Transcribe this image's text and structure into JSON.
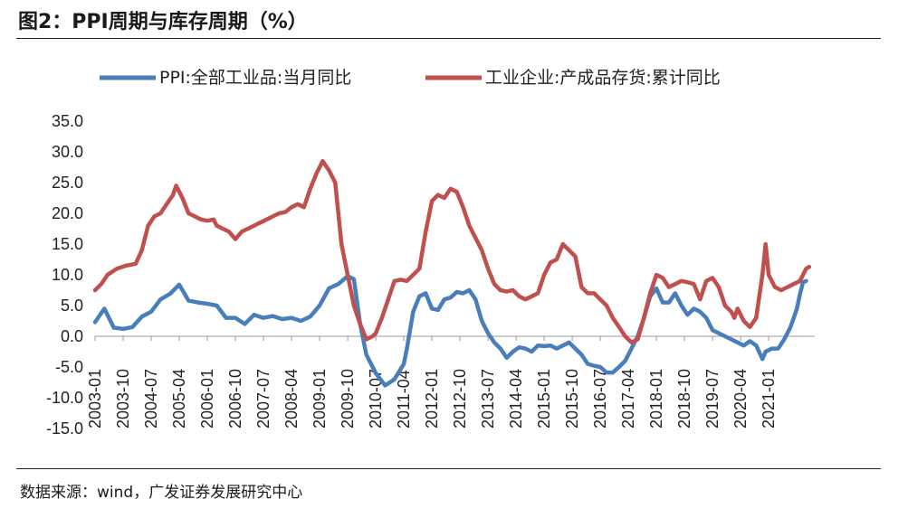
{
  "header": {
    "title": "图2：PPI周期与库存周期（%）"
  },
  "footer": {
    "source": "数据来源：wind，广发证券发展研究中心"
  },
  "chart_data": {
    "type": "line",
    "title": "PPI周期与库存周期（%）",
    "xlabel": "",
    "ylabel": "",
    "ylim": [
      -15,
      35
    ],
    "yticks": [
      "35.0",
      "30.0",
      "25.0",
      "20.0",
      "15.0",
      "10.0",
      "5.0",
      "0.0",
      "-5.0",
      "-10.0",
      "-15.0"
    ],
    "x_tick_labels": [
      "2003-01",
      "2003-10",
      "2004-07",
      "2005-04",
      "2006-01",
      "2006-10",
      "2007-07",
      "2008-04",
      "2009-01",
      "2009-10",
      "2010-07",
      "2011-04",
      "2012-01",
      "2012-10",
      "2013-07",
      "2014-04",
      "2015-01",
      "2015-10",
      "2016-07",
      "2017-04",
      "2018-01",
      "2018-10",
      "2019-07",
      "2020-04",
      "2021-01"
    ],
    "x_start": "2003-01",
    "x_end": "2021-06",
    "legend_position": "top",
    "series": [
      {
        "name": "PPI:全部工业品:当月同比",
        "color": "#4a7ebb",
        "points": [
          [
            0,
            2.3
          ],
          [
            3,
            4.5
          ],
          [
            6,
            1.4
          ],
          [
            9,
            1.2
          ],
          [
            12,
            1.5
          ],
          [
            15,
            3.2
          ],
          [
            18,
            4.0
          ],
          [
            21,
            6.0
          ],
          [
            24,
            6.9
          ],
          [
            27,
            8.4
          ],
          [
            30,
            5.8
          ],
          [
            33,
            5.5
          ],
          [
            36,
            5.3
          ],
          [
            39,
            5.0
          ],
          [
            42,
            3.0
          ],
          [
            45,
            3.0
          ],
          [
            48,
            2.0
          ],
          [
            51,
            3.5
          ],
          [
            54,
            3.0
          ],
          [
            57,
            3.3
          ],
          [
            60,
            2.8
          ],
          [
            63,
            3.0
          ],
          [
            66,
            2.5
          ],
          [
            69,
            3.2
          ],
          [
            72,
            5.0
          ],
          [
            75,
            7.8
          ],
          [
            78,
            8.5
          ],
          [
            81,
            9.8
          ],
          [
            83,
            9.3
          ],
          [
            85,
            2.0
          ],
          [
            87,
            -3.0
          ],
          [
            90,
            -6.0
          ],
          [
            93,
            -8.0
          ],
          [
            96,
            -7.0
          ],
          [
            99,
            -4.5
          ],
          [
            100,
            -2.0
          ],
          [
            102,
            4.0
          ],
          [
            104,
            6.5
          ],
          [
            106,
            7.0
          ],
          [
            108,
            4.5
          ],
          [
            110,
            4.3
          ],
          [
            112,
            6.0
          ],
          [
            114,
            6.3
          ],
          [
            116,
            7.2
          ],
          [
            118,
            7.0
          ],
          [
            120,
            7.5
          ],
          [
            122,
            6.0
          ],
          [
            124,
            2.5
          ],
          [
            126,
            0.5
          ],
          [
            128,
            -1.0
          ],
          [
            130,
            -2.0
          ],
          [
            132,
            -3.5
          ],
          [
            134,
            -2.5
          ],
          [
            136,
            -1.8
          ],
          [
            138,
            -2.0
          ],
          [
            140,
            -2.5
          ],
          [
            142,
            -1.5
          ],
          [
            144,
            -1.6
          ],
          [
            146,
            -1.5
          ],
          [
            148,
            -2.0
          ],
          [
            150,
            -1.5
          ],
          [
            152,
            -1.0
          ],
          [
            154,
            -2.0
          ],
          [
            156,
            -3.0
          ],
          [
            158,
            -4.5
          ],
          [
            160,
            -4.8
          ],
          [
            162,
            -5.0
          ],
          [
            164,
            -5.9
          ],
          [
            166,
            -5.9
          ],
          [
            168,
            -5.0
          ],
          [
            170,
            -4.0
          ],
          [
            172,
            -2.0
          ],
          [
            174,
            0.0
          ],
          [
            176,
            3.0
          ],
          [
            178,
            6.5
          ],
          [
            180,
            7.8
          ],
          [
            182,
            5.5
          ],
          [
            184,
            5.5
          ],
          [
            186,
            7.0
          ],
          [
            188,
            5.0
          ],
          [
            190,
            3.5
          ],
          [
            192,
            4.5
          ],
          [
            194,
            4.0
          ],
          [
            196,
            3.0
          ],
          [
            198,
            1.0
          ],
          [
            200,
            0.5
          ],
          [
            202,
            0.0
          ],
          [
            204,
            -0.5
          ],
          [
            206,
            -1.0
          ],
          [
            208,
            -1.5
          ],
          [
            210,
            -0.8
          ],
          [
            212,
            -1.5
          ],
          [
            214,
            -3.7
          ],
          [
            215,
            -2.5
          ],
          [
            217,
            -2.0
          ],
          [
            219,
            -2.0
          ],
          [
            221,
            -0.5
          ],
          [
            223,
            1.5
          ],
          [
            225,
            4.4
          ],
          [
            226,
            6.8
          ],
          [
            227,
            8.8
          ],
          [
            228,
            9.0
          ]
        ]
      },
      {
        "name": "工业企业:产成品存货:累计同比",
        "color": "#c0504d",
        "points": [
          [
            0,
            7.5
          ],
          [
            2,
            8.5
          ],
          [
            4,
            10.0
          ],
          [
            7,
            11.0
          ],
          [
            10,
            11.5
          ],
          [
            13,
            11.8
          ],
          [
            15,
            14.0
          ],
          [
            17,
            18.0
          ],
          [
            19,
            19.5
          ],
          [
            21,
            20.0
          ],
          [
            23,
            21.5
          ],
          [
            25,
            23.0
          ],
          [
            26,
            24.5
          ],
          [
            28,
            22.5
          ],
          [
            30,
            20.0
          ],
          [
            32,
            19.5
          ],
          [
            34,
            19.0
          ],
          [
            36,
            18.8
          ],
          [
            38,
            19.0
          ],
          [
            39,
            18.0
          ],
          [
            41,
            17.5
          ],
          [
            43,
            17.0
          ],
          [
            45,
            15.8
          ],
          [
            47,
            17.0
          ],
          [
            49,
            17.5
          ],
          [
            51,
            18.0
          ],
          [
            53,
            18.5
          ],
          [
            55,
            19.0
          ],
          [
            57,
            19.5
          ],
          [
            59,
            20.0
          ],
          [
            61,
            20.2
          ],
          [
            63,
            21.0
          ],
          [
            65,
            21.5
          ],
          [
            67,
            21.0
          ],
          [
            69,
            24.0
          ],
          [
            71,
            26.5
          ],
          [
            73,
            28.5
          ],
          [
            75,
            27.0
          ],
          [
            77,
            25.0
          ],
          [
            79,
            15.0
          ],
          [
            81,
            10.0
          ],
          [
            83,
            5.0
          ],
          [
            85,
            2.0
          ],
          [
            87,
            -0.5
          ],
          [
            89,
            0.0
          ],
          [
            90,
            0.5
          ],
          [
            92,
            3.0
          ],
          [
            94,
            6.0
          ],
          [
            96,
            9.0
          ],
          [
            98,
            9.2
          ],
          [
            100,
            9.0
          ],
          [
            102,
            10.0
          ],
          [
            104,
            11.0
          ],
          [
            106,
            17.0
          ],
          [
            108,
            22.0
          ],
          [
            110,
            23.0
          ],
          [
            112,
            22.5
          ],
          [
            114,
            24.0
          ],
          [
            116,
            23.5
          ],
          [
            118,
            21.0
          ],
          [
            120,
            18.0
          ],
          [
            122,
            16.0
          ],
          [
            124,
            14.0
          ],
          [
            126,
            11.0
          ],
          [
            128,
            8.5
          ],
          [
            130,
            7.5
          ],
          [
            132,
            7.3
          ],
          [
            134,
            7.5
          ],
          [
            136,
            6.5
          ],
          [
            138,
            6.0
          ],
          [
            140,
            6.5
          ],
          [
            142,
            7.0
          ],
          [
            144,
            10.0
          ],
          [
            146,
            12.0
          ],
          [
            148,
            12.5
          ],
          [
            150,
            15.0
          ],
          [
            152,
            14.0
          ],
          [
            154,
            13.0
          ],
          [
            156,
            8.0
          ],
          [
            158,
            7.0
          ],
          [
            160,
            7.0
          ],
          [
            162,
            6.0
          ],
          [
            164,
            5.0
          ],
          [
            166,
            3.0
          ],
          [
            168,
            1.5
          ],
          [
            170,
            0.0
          ],
          [
            172,
            -1.0
          ],
          [
            174,
            -0.5
          ],
          [
            176,
            3.0
          ],
          [
            178,
            7.0
          ],
          [
            180,
            10.0
          ],
          [
            182,
            9.5
          ],
          [
            184,
            8.0
          ],
          [
            186,
            8.5
          ],
          [
            188,
            9.0
          ],
          [
            190,
            8.8
          ],
          [
            192,
            8.5
          ],
          [
            194,
            6.0
          ],
          [
            196,
            9.0
          ],
          [
            198,
            9.5
          ],
          [
            200,
            8.0
          ],
          [
            202,
            5.0
          ],
          [
            204,
            4.0
          ],
          [
            205,
            3.0
          ],
          [
            206,
            4.5
          ],
          [
            208,
            2.5
          ],
          [
            210,
            1.5
          ],
          [
            212,
            3.0
          ],
          [
            214,
            10.0
          ],
          [
            215,
            15.0
          ],
          [
            216,
            10.0
          ],
          [
            218,
            8.0
          ],
          [
            220,
            7.5
          ],
          [
            222,
            8.0
          ],
          [
            224,
            8.5
          ],
          [
            226,
            9.0
          ],
          [
            228,
            11.0
          ],
          [
            229,
            11.3
          ]
        ]
      }
    ]
  }
}
